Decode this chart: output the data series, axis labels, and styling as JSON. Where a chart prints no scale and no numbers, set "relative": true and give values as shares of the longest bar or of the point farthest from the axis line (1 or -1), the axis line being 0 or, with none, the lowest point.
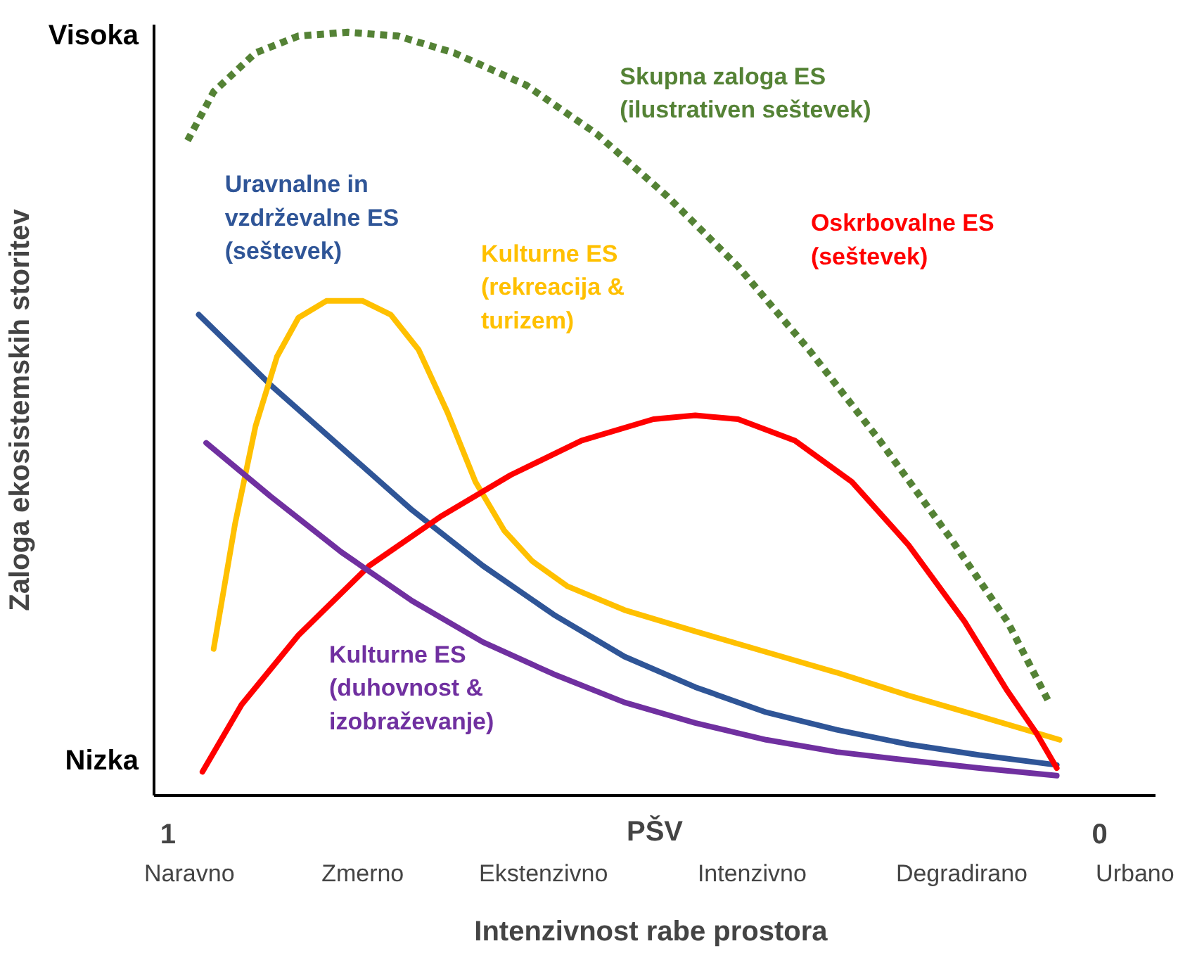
{
  "chart_data": {
    "type": "line",
    "relative": true,
    "xlabel": "Intenzivnost  rabe prostora",
    "ylabel": "Zaloga ekosistemskih storitev",
    "xlim": [
      1.015,
      -0.06
    ],
    "xticks": [
      1,
      0
    ],
    "annotations": [
      "Visoka",
      "Nizka",
      "PŠV",
      "Naravno",
      "Zmerno",
      "Ekstenzivno",
      "Intenzivno",
      "Degradirano",
      "Urbano"
    ],
    "grid": false,
    "series": [
      {
        "name": "Skupna zaloga ES\n(ilustrativen seštevek)",
        "color": "#548235",
        "line_style": "dotted",
        "x": [
          0.979,
          0.951,
          0.906,
          0.86,
          0.807,
          0.753,
          0.693,
          0.616,
          0.54,
          0.464,
          0.388,
          0.312,
          0.236,
          0.16,
          0.099,
          0.053
        ],
        "values": [
          0.858,
          0.922,
          0.973,
          0.995,
          1.0,
          0.995,
          0.973,
          0.931,
          0.867,
          0.785,
          0.693,
          0.584,
          0.465,
          0.337,
          0.228,
          0.119
        ]
      },
      {
        "name": "Uravnalne in\nvzdrževalne ES\n(seštevek)",
        "color": "#2f5597",
        "line_style": "solid",
        "x": [
          0.967,
          0.89,
          0.814,
          0.738,
          0.662,
          0.586,
          0.51,
          0.434,
          0.358,
          0.282,
          0.205,
          0.129,
          0.046
        ],
        "values": [
          0.63,
          0.538,
          0.456,
          0.374,
          0.301,
          0.237,
          0.182,
          0.142,
          0.109,
          0.086,
          0.067,
          0.053,
          0.04
        ]
      },
      {
        "name": "Kulturne ES\n(rekreacija &\nturizem)",
        "color": "#ffc000",
        "line_style": "solid",
        "x": [
          0.951,
          0.928,
          0.906,
          0.883,
          0.86,
          0.83,
          0.791,
          0.761,
          0.731,
          0.7,
          0.67,
          0.639,
          0.609,
          0.571,
          0.51,
          0.434,
          0.358,
          0.282,
          0.205,
          0.129,
          0.043
        ],
        "values": [
          0.192,
          0.356,
          0.484,
          0.575,
          0.626,
          0.648,
          0.648,
          0.63,
          0.584,
          0.502,
          0.411,
          0.347,
          0.307,
          0.274,
          0.243,
          0.215,
          0.188,
          0.161,
          0.131,
          0.104,
          0.073
        ]
      },
      {
        "name": "Oskrbovalne ES\n(seštevek)",
        "color": "#ff0000",
        "line_style": "solid",
        "x": [
          0.963,
          0.921,
          0.86,
          0.784,
          0.708,
          0.632,
          0.556,
          0.479,
          0.434,
          0.388,
          0.327,
          0.266,
          0.205,
          0.145,
          0.099,
          0.068,
          0.046
        ],
        "values": [
          0.031,
          0.119,
          0.21,
          0.301,
          0.365,
          0.42,
          0.465,
          0.493,
          0.498,
          0.493,
          0.465,
          0.411,
          0.328,
          0.228,
          0.137,
          0.082,
          0.036
        ]
      },
      {
        "name": "Kulturne ES\n(duhovnost &\nizobraževanje)",
        "color": "#7030a0",
        "line_style": "solid",
        "x": [
          0.959,
          0.89,
          0.814,
          0.738,
          0.662,
          0.586,
          0.51,
          0.434,
          0.358,
          0.282,
          0.205,
          0.129,
          0.046
        ],
        "values": [
          0.462,
          0.392,
          0.319,
          0.255,
          0.201,
          0.159,
          0.122,
          0.095,
          0.073,
          0.057,
          0.046,
          0.036,
          0.026
        ]
      }
    ]
  }
}
